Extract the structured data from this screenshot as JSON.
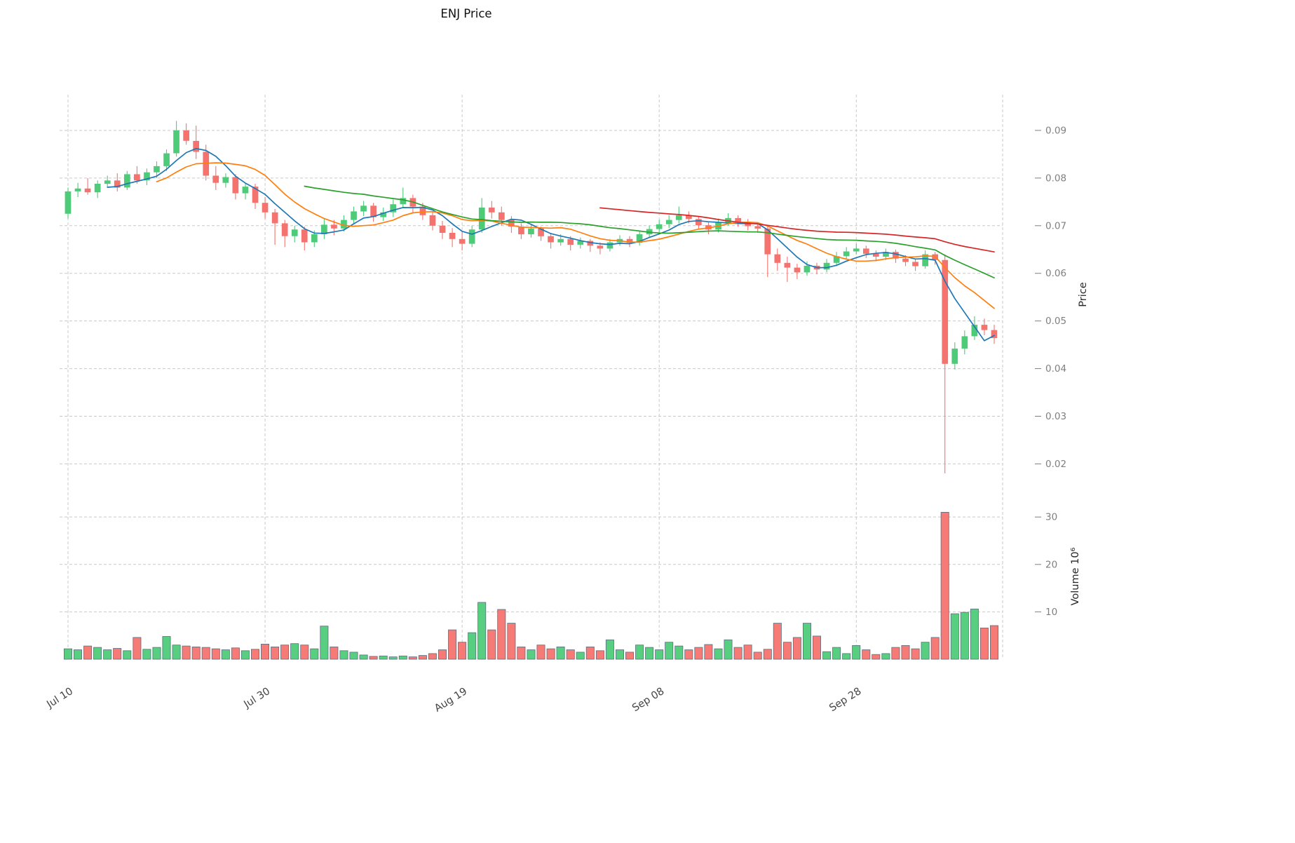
{
  "chart_data": {
    "type": "candlestick",
    "title": "ENJ Price",
    "x_tick_labels": [
      "Jul 10",
      "Jul 30",
      "Aug 19",
      "Sep 08",
      "Sep 28"
    ],
    "x_tick_indices": [
      0,
      20,
      40,
      60,
      80
    ],
    "price_axis": {
      "label": "Price",
      "ticks": [
        0.02,
        0.03,
        0.04,
        0.05,
        0.06,
        0.07,
        0.08,
        0.09
      ],
      "ylim": [
        0.0155,
        0.0975
      ]
    },
    "volume_axis": {
      "label": "Volume 10⁶",
      "ticks": [
        10,
        20,
        30
      ],
      "ylim": [
        0,
        35.5
      ]
    },
    "moving_averages": [
      {
        "name": "ma-short",
        "window": 5,
        "color": "#1f77b4"
      },
      {
        "name": "ma-medium",
        "window": 10,
        "color": "#ff7f0e"
      },
      {
        "name": "ma-long",
        "window": 25,
        "color": "#2ca02c"
      },
      {
        "name": "ma-longest",
        "window": 55,
        "color": "#d62728"
      }
    ],
    "open": [
      0.0725,
      0.0772,
      0.0778,
      0.077,
      0.0788,
      0.0795,
      0.078,
      0.0808,
      0.0795,
      0.0812,
      0.0825,
      0.0852,
      0.09,
      0.0878,
      0.0855,
      0.0805,
      0.079,
      0.0802,
      0.0768,
      0.0782,
      0.0748,
      0.0728,
      0.0705,
      0.0678,
      0.0692,
      0.0665,
      0.0682,
      0.0702,
      0.0694,
      0.0712,
      0.073,
      0.0742,
      0.0718,
      0.0728,
      0.0745,
      0.0758,
      0.074,
      0.0722,
      0.07,
      0.0685,
      0.0672,
      0.0662,
      0.0692,
      0.0738,
      0.0728,
      0.0712,
      0.0698,
      0.0682,
      0.0694,
      0.0678,
      0.0665,
      0.0672,
      0.066,
      0.0668,
      0.0658,
      0.0652,
      0.0665,
      0.0672,
      0.0664,
      0.0682,
      0.0693,
      0.0703,
      0.0712,
      0.0722,
      0.0714,
      0.0701,
      0.0692,
      0.0706,
      0.0716,
      0.0708,
      0.0699,
      0.0694,
      0.064,
      0.0622,
      0.0612,
      0.0602,
      0.0616,
      0.0608,
      0.0622,
      0.0636,
      0.0646,
      0.0652,
      0.0641,
      0.0635,
      0.0645,
      0.0631,
      0.0624,
      0.0615,
      0.064,
      0.0628,
      0.041,
      0.0442,
      0.0468,
      0.0492,
      0.0481
    ],
    "high": [
      0.078,
      0.079,
      0.08,
      0.0795,
      0.0805,
      0.081,
      0.0815,
      0.0825,
      0.082,
      0.0835,
      0.086,
      0.092,
      0.0915,
      0.091,
      0.087,
      0.0825,
      0.081,
      0.0808,
      0.079,
      0.0788,
      0.076,
      0.0735,
      0.0712,
      0.07,
      0.0698,
      0.069,
      0.0715,
      0.0712,
      0.0722,
      0.074,
      0.0752,
      0.0748,
      0.0738,
      0.0755,
      0.078,
      0.0765,
      0.0748,
      0.073,
      0.071,
      0.0695,
      0.0688,
      0.07,
      0.0758,
      0.0752,
      0.074,
      0.072,
      0.0705,
      0.0702,
      0.0698,
      0.0685,
      0.0682,
      0.0678,
      0.0675,
      0.0672,
      0.0665,
      0.0672,
      0.068,
      0.0678,
      0.069,
      0.07,
      0.0712,
      0.0722,
      0.074,
      0.073,
      0.072,
      0.0708,
      0.0715,
      0.0726,
      0.0722,
      0.0714,
      0.0706,
      0.0698,
      0.0652,
      0.0635,
      0.062,
      0.0625,
      0.0622,
      0.063,
      0.0645,
      0.0655,
      0.0662,
      0.0658,
      0.0648,
      0.0652,
      0.065,
      0.0638,
      0.063,
      0.0648,
      0.0645,
      0.064,
      0.0455,
      0.048,
      0.051,
      0.0505,
      0.0492
    ],
    "low": [
      0.0715,
      0.076,
      0.0765,
      0.0758,
      0.078,
      0.0772,
      0.0775,
      0.0788,
      0.0785,
      0.08,
      0.0815,
      0.0845,
      0.087,
      0.084,
      0.0795,
      0.0775,
      0.078,
      0.0755,
      0.0755,
      0.0735,
      0.0715,
      0.066,
      0.0655,
      0.0665,
      0.0648,
      0.0655,
      0.0672,
      0.068,
      0.0688,
      0.0705,
      0.072,
      0.0708,
      0.071,
      0.0718,
      0.0738,
      0.0728,
      0.0712,
      0.069,
      0.0672,
      0.0655,
      0.0648,
      0.0655,
      0.0685,
      0.0715,
      0.07,
      0.0685,
      0.0672,
      0.0675,
      0.0668,
      0.0652,
      0.0658,
      0.0648,
      0.0652,
      0.0645,
      0.064,
      0.0646,
      0.0658,
      0.0655,
      0.0658,
      0.0675,
      0.0686,
      0.0695,
      0.0705,
      0.0705,
      0.0692,
      0.0682,
      0.0686,
      0.07,
      0.0698,
      0.069,
      0.0685,
      0.0592,
      0.0605,
      0.0582,
      0.0588,
      0.0595,
      0.0598,
      0.0602,
      0.0615,
      0.063,
      0.064,
      0.0632,
      0.0625,
      0.0628,
      0.0622,
      0.0615,
      0.0605,
      0.061,
      0.0618,
      0.018,
      0.0398,
      0.043,
      0.046,
      0.047,
      0.0452
    ],
    "close": [
      0.0772,
      0.0778,
      0.077,
      0.0788,
      0.0795,
      0.078,
      0.0808,
      0.0795,
      0.0812,
      0.0825,
      0.0852,
      0.09,
      0.0878,
      0.0855,
      0.0805,
      0.079,
      0.0802,
      0.0768,
      0.0782,
      0.0748,
      0.0728,
      0.0705,
      0.0678,
      0.0692,
      0.0665,
      0.0682,
      0.0702,
      0.0694,
      0.0712,
      0.073,
      0.0742,
      0.0718,
      0.0728,
      0.0745,
      0.0758,
      0.074,
      0.0722,
      0.07,
      0.0685,
      0.0672,
      0.0662,
      0.0692,
      0.0738,
      0.0728,
      0.0712,
      0.0698,
      0.0682,
      0.0694,
      0.0678,
      0.0665,
      0.0672,
      0.066,
      0.0668,
      0.0658,
      0.0652,
      0.0665,
      0.0672,
      0.0664,
      0.0682,
      0.0693,
      0.0703,
      0.0712,
      0.0722,
      0.0714,
      0.0701,
      0.0692,
      0.0706,
      0.0716,
      0.0708,
      0.0699,
      0.0694,
      0.064,
      0.0622,
      0.0612,
      0.0602,
      0.0616,
      0.0608,
      0.0622,
      0.0636,
      0.0646,
      0.0652,
      0.0641,
      0.0635,
      0.0645,
      0.0631,
      0.0624,
      0.0615,
      0.064,
      0.0628,
      0.041,
      0.0442,
      0.0468,
      0.0492,
      0.0481,
      0.0464
    ],
    "volume": [
      2.2,
      2.0,
      2.8,
      2.5,
      2.0,
      2.3,
      1.8,
      4.6,
      2.1,
      2.5,
      4.8,
      3.0,
      2.8,
      2.6,
      2.5,
      2.2,
      2.0,
      2.4,
      1.8,
      2.1,
      3.2,
      2.6,
      3.0,
      3.3,
      3.0,
      2.2,
      7.0,
      2.6,
      1.8,
      1.5,
      0.9,
      0.6,
      0.7,
      0.5,
      0.7,
      0.5,
      0.8,
      1.2,
      2.0,
      6.2,
      3.6,
      5.6,
      12.0,
      6.2,
      10.5,
      7.6,
      2.6,
      2.0,
      3.0,
      2.2,
      2.6,
      2.0,
      1.5,
      2.6,
      1.8,
      4.1,
      2.0,
      1.5,
      3.0,
      2.5,
      2.0,
      3.6,
      2.8,
      2.0,
      2.5,
      3.1,
      2.2,
      4.1,
      2.5,
      3.0,
      1.5,
      2.1,
      7.6,
      3.6,
      4.6,
      7.6,
      4.9,
      1.6,
      2.5,
      1.2,
      2.9,
      2.0,
      1.0,
      1.2,
      2.5,
      2.9,
      2.2,
      3.6,
      4.6,
      31.0,
      9.6,
      9.9,
      10.6,
      6.6,
      7.1
    ]
  },
  "style": {
    "up_color": "#4ecb79",
    "down_color": "#f5736e",
    "volume_edge_color": "#5c6e7f",
    "grid_color": "#c9c9c9",
    "tick_color": "#7f7f7f",
    "title_color": "#111111"
  }
}
